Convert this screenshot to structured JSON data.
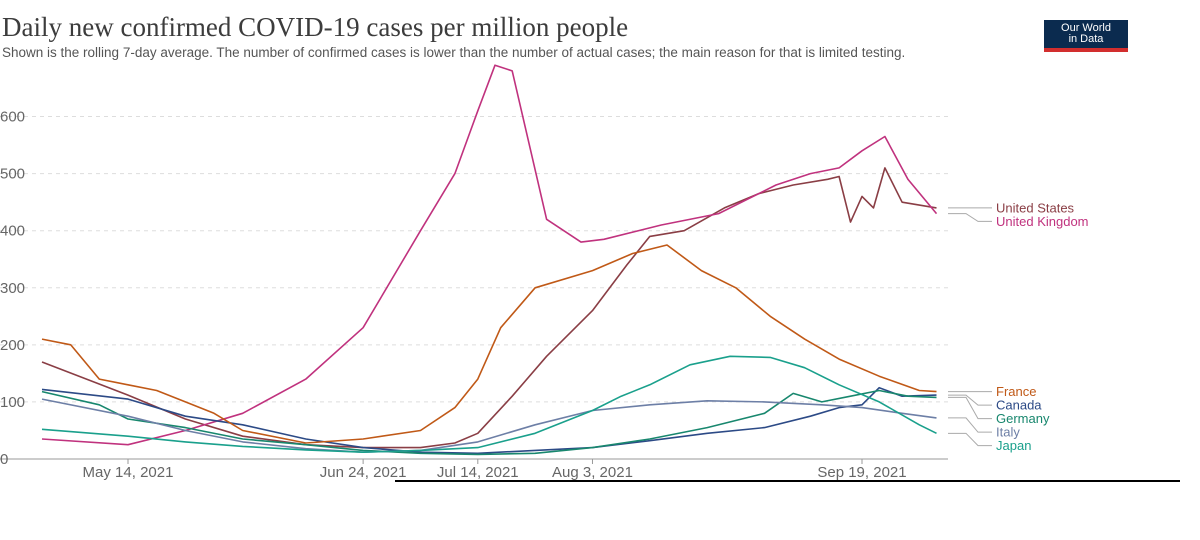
{
  "header": {
    "title": "Daily new confirmed COVID-19 cases per million people",
    "subtitle": "Shown is the rolling 7-day average. The number of confirmed cases is lower than the number of actual cases; the main reason for that is limited testing.",
    "logo_line1": "Our World",
    "logo_line2": "in Data"
  },
  "chart_data": {
    "type": "line",
    "title": "Daily new confirmed COVID-19 cases per million people",
    "ylim": [
      0,
      650
    ],
    "yticks": [
      0,
      100,
      200,
      300,
      400,
      500,
      600
    ],
    "xlim": [
      "2021-04-29",
      "2021-10-04"
    ],
    "xtick_labels": [
      "May 14, 2021",
      "Jun 24, 2021",
      "Jul 14, 2021",
      "Aug 3, 2021",
      "Sep 19, 2021"
    ],
    "xtick_dates": [
      "2021-05-14",
      "2021-06-24",
      "2021-07-14",
      "2021-08-03",
      "2021-09-19"
    ],
    "grid": "horizontal dashed",
    "legend": "right, inline labels",
    "series": [
      {
        "name": "United States",
        "color": "#8a3e45",
        "x": [
          "2021-04-29",
          "2021-05-14",
          "2021-05-24",
          "2021-06-03",
          "2021-06-14",
          "2021-06-24",
          "2021-07-04",
          "2021-07-10",
          "2021-07-14",
          "2021-07-20",
          "2021-07-26",
          "2021-08-03",
          "2021-08-09",
          "2021-08-13",
          "2021-08-19",
          "2021-08-26",
          "2021-09-01",
          "2021-09-07",
          "2021-09-13",
          "2021-09-15",
          "2021-09-17",
          "2021-09-19",
          "2021-09-21",
          "2021-09-23",
          "2021-09-26",
          "2021-10-02"
        ],
        "y": [
          170,
          112,
          70,
          40,
          25,
          20,
          20,
          28,
          45,
          110,
          180,
          260,
          340,
          390,
          400,
          440,
          465,
          480,
          490,
          495,
          415,
          460,
          440,
          510,
          450,
          440
        ]
      },
      {
        "name": "United Kingdom",
        "color": "#c0327e",
        "x": [
          "2021-04-29",
          "2021-05-14",
          "2021-05-24",
          "2021-06-03",
          "2021-06-14",
          "2021-06-24",
          "2021-07-04",
          "2021-07-10",
          "2021-07-14",
          "2021-07-17",
          "2021-07-20",
          "2021-07-26",
          "2021-08-01",
          "2021-08-05",
          "2021-08-15",
          "2021-08-25",
          "2021-09-04",
          "2021-09-10",
          "2021-09-15",
          "2021-09-19",
          "2021-09-23",
          "2021-09-27",
          "2021-10-02"
        ],
        "y": [
          35,
          25,
          50,
          80,
          140,
          230,
          400,
          500,
          610,
          690,
          680,
          420,
          380,
          385,
          410,
          430,
          480,
          500,
          510,
          540,
          565,
          490,
          430
        ]
      },
      {
        "name": "Canada",
        "color": "#2c4a86",
        "x": [
          "2021-04-29",
          "2021-05-14",
          "2021-05-24",
          "2021-06-03",
          "2021-06-14",
          "2021-06-24",
          "2021-07-04",
          "2021-07-14",
          "2021-07-24",
          "2021-08-03",
          "2021-08-13",
          "2021-08-23",
          "2021-09-02",
          "2021-09-10",
          "2021-09-15",
          "2021-09-19",
          "2021-09-22",
          "2021-09-26",
          "2021-10-02"
        ],
        "y": [
          122,
          105,
          75,
          60,
          35,
          20,
          12,
          10,
          15,
          20,
          32,
          45,
          55,
          75,
          90,
          95,
          125,
          110,
          112
        ]
      },
      {
        "name": "France",
        "color": "#c05917",
        "x": [
          "2021-04-29",
          "2021-05-04",
          "2021-05-09",
          "2021-05-14",
          "2021-05-19",
          "2021-05-24",
          "2021-05-29",
          "2021-06-03",
          "2021-06-14",
          "2021-06-24",
          "2021-07-04",
          "2021-07-10",
          "2021-07-14",
          "2021-07-18",
          "2021-07-24",
          "2021-08-03",
          "2021-08-10",
          "2021-08-16",
          "2021-08-22",
          "2021-08-28",
          "2021-09-03",
          "2021-09-09",
          "2021-09-15",
          "2021-09-22",
          "2021-09-29",
          "2021-10-02"
        ],
        "y": [
          210,
          200,
          140,
          130,
          120,
          100,
          80,
          50,
          28,
          35,
          50,
          90,
          140,
          230,
          300,
          330,
          360,
          375,
          330,
          300,
          250,
          210,
          175,
          145,
          120,
          118
        ]
      },
      {
        "name": "Germany",
        "color": "#18876e",
        "x": [
          "2021-04-29",
          "2021-05-09",
          "2021-05-14",
          "2021-05-24",
          "2021-06-03",
          "2021-06-14",
          "2021-06-24",
          "2021-07-04",
          "2021-07-14",
          "2021-07-24",
          "2021-08-03",
          "2021-08-13",
          "2021-08-23",
          "2021-09-02",
          "2021-09-07",
          "2021-09-12",
          "2021-09-17",
          "2021-09-22",
          "2021-09-27",
          "2021-10-02"
        ],
        "y": [
          118,
          95,
          70,
          55,
          35,
          25,
          15,
          10,
          8,
          10,
          20,
          35,
          55,
          80,
          115,
          100,
          110,
          120,
          110,
          108
        ]
      },
      {
        "name": "Italy",
        "color": "#6d7fa6",
        "x": [
          "2021-04-29",
          "2021-05-14",
          "2021-05-24",
          "2021-06-03",
          "2021-06-14",
          "2021-06-24",
          "2021-07-04",
          "2021-07-14",
          "2021-07-24",
          "2021-08-03",
          "2021-08-13",
          "2021-08-23",
          "2021-09-02",
          "2021-09-12",
          "2021-09-19",
          "2021-09-26",
          "2021-10-02"
        ],
        "y": [
          105,
          75,
          50,
          30,
          18,
          12,
          15,
          30,
          60,
          85,
          95,
          102,
          100,
          95,
          90,
          80,
          72
        ]
      },
      {
        "name": "Japan",
        "color": "#1aa08c",
        "x": [
          "2021-04-29",
          "2021-05-14",
          "2021-05-24",
          "2021-06-03",
          "2021-06-14",
          "2021-06-24",
          "2021-07-04",
          "2021-07-14",
          "2021-07-24",
          "2021-08-03",
          "2021-08-08",
          "2021-08-13",
          "2021-08-20",
          "2021-08-27",
          "2021-09-03",
          "2021-09-09",
          "2021-09-15",
          "2021-09-22",
          "2021-09-29",
          "2021-10-02"
        ],
        "y": [
          52,
          40,
          30,
          22,
          16,
          12,
          15,
          20,
          45,
          85,
          110,
          130,
          165,
          180,
          178,
          160,
          130,
          100,
          60,
          45
        ]
      }
    ]
  }
}
